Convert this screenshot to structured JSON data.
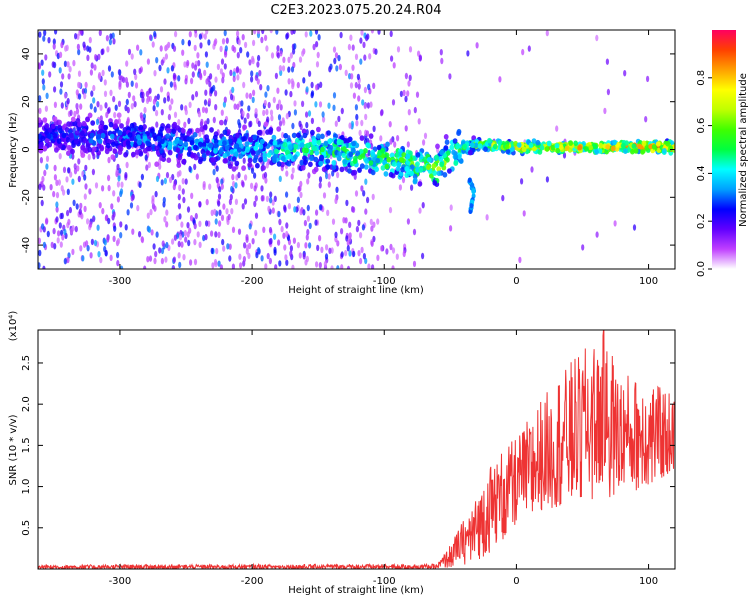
{
  "figure": {
    "title": "C2E3.2023.075.20.24.R04"
  },
  "chart_data": [
    {
      "type": "heatmap",
      "xlabel": "Height of straight line (km)",
      "ylabel": "Frequency (Hz)",
      "xlim": [
        -362,
        120
      ],
      "ylim": [
        -50,
        50
      ],
      "xticks": [
        -300,
        -200,
        -100,
        0,
        100
      ],
      "yticks": [
        -40,
        -20,
        0,
        20,
        40
      ],
      "xtick_labels": [
        "-300",
        "-200",
        "-100",
        "0",
        "100"
      ],
      "ytick_labels": [
        "-40",
        "-20",
        "0",
        "20",
        "40"
      ],
      "colorbar": {
        "label": "Normalized spectral amplitude",
        "range": [
          0,
          1
        ],
        "ticks": [
          0.0,
          0.2,
          0.4,
          0.6,
          0.8
        ],
        "tick_labels": [
          "0.0",
          "0.2",
          "0.4",
          "0.6",
          "0.8"
        ],
        "colors": [
          "#ffffff",
          "#c040ff",
          "#6000ff",
          "#0000ff",
          "#00a0ff",
          "#00ffff",
          "#00ff40",
          "#40ff00",
          "#c0ff00",
          "#ffff00",
          "#ffa000",
          "#ff4000",
          "#ff0060"
        ]
      },
      "ridge": [
        {
          "x": -362,
          "f": 6
        },
        {
          "x": -300,
          "f": 5
        },
        {
          "x": -250,
          "f": 2
        },
        {
          "x": -200,
          "f": 0
        },
        {
          "x": -150,
          "f": 0
        },
        {
          "x": -120,
          "f": -2
        },
        {
          "x": -100,
          "f": -4
        },
        {
          "x": -80,
          "f": -6
        },
        {
          "x": -60,
          "f": -8
        },
        {
          "x": -45,
          "f": 0
        },
        {
          "x": -30,
          "f": 2
        },
        {
          "x": 0,
          "f": 1
        },
        {
          "x": 120,
          "f": 1
        }
      ],
      "ridge_amplitude": [
        {
          "x": -362,
          "a": 0.25
        },
        {
          "x": -200,
          "a": 0.4
        },
        {
          "x": -100,
          "a": 0.55
        },
        {
          "x": -60,
          "a": 0.6
        },
        {
          "x": -40,
          "a": 0.55
        },
        {
          "x": 0,
          "a": 0.75
        },
        {
          "x": 120,
          "a": 0.85
        }
      ],
      "tail": [
        {
          "x": -36,
          "f": -12
        },
        {
          "x": -32,
          "f": -18
        },
        {
          "x": -35,
          "f": -26
        }
      ]
    },
    {
      "type": "line",
      "xlabel": "Height of straight line (km)",
      "ylabel": "SNR (10 * v/v)",
      "ylabel_multiplier": "(x10⁴)",
      "color": "#ee3333",
      "xlim": [
        -362,
        120
      ],
      "ylim": [
        0,
        2.9
      ],
      "xticks": [
        -300,
        -200,
        -100,
        0,
        100
      ],
      "yticks": [
        0.5,
        1.0,
        1.5,
        2.0,
        2.5
      ],
      "xtick_labels": [
        "-300",
        "-200",
        "-100",
        "0",
        "100"
      ],
      "ytick_labels": [
        "0.5",
        "1.0",
        "1.5",
        "2.0",
        "2.5"
      ],
      "envelope": [
        {
          "x": -362,
          "lo": 0.0,
          "hi": 0.05
        },
        {
          "x": -60,
          "lo": 0.0,
          "hi": 0.06
        },
        {
          "x": -50,
          "lo": 0.02,
          "hi": 0.3
        },
        {
          "x": -40,
          "lo": 0.05,
          "hi": 0.6
        },
        {
          "x": -30,
          "lo": 0.1,
          "hi": 0.9
        },
        {
          "x": -20,
          "lo": 0.2,
          "hi": 1.3
        },
        {
          "x": 0,
          "lo": 0.5,
          "hi": 1.6
        },
        {
          "x": 20,
          "lo": 0.7,
          "hi": 2.1
        },
        {
          "x": 40,
          "lo": 0.8,
          "hi": 2.5
        },
        {
          "x": 65,
          "lo": 0.85,
          "hi": 2.9
        },
        {
          "x": 80,
          "lo": 0.9,
          "hi": 2.4
        },
        {
          "x": 100,
          "lo": 1.0,
          "hi": 2.3
        },
        {
          "x": 120,
          "lo": 1.2,
          "hi": 2.1
        }
      ],
      "peak": {
        "x": 66,
        "y": 2.9
      }
    }
  ]
}
